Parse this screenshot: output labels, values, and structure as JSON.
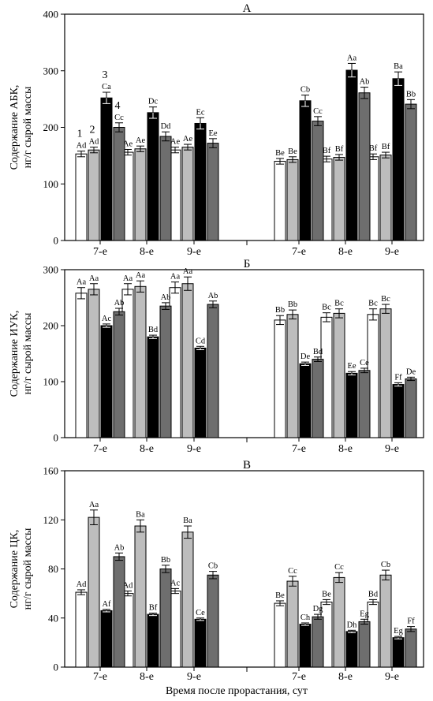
{
  "x_title": "Время после прорастания, сут",
  "colors": {
    "series1": "#ffffff",
    "series2": "#bdbdbd",
    "series3": "#000000",
    "series4": "#6e6e6e",
    "axis": "#000000"
  },
  "chart_data": [
    {
      "type": "bar",
      "title": "А",
      "ylabel_lines": [
        "Содержание АБК,",
        "нг/г сырой массы"
      ],
      "ylim": [
        0,
        400
      ],
      "yticks": [
        0,
        100,
        200,
        300,
        400
      ],
      "categories": [
        "7-е",
        "8-е",
        "9-е",
        "7-е",
        "8-е",
        "9-е"
      ],
      "series_numbers": [
        "1",
        "2",
        "3",
        "4"
      ],
      "series": [
        {
          "values": [
            153,
            156,
            160,
            140,
            144,
            148
          ],
          "errors": [
            5,
            5,
            5,
            5,
            5,
            5
          ],
          "labels": [
            "Ad",
            "Ae",
            "Ae",
            "Be",
            "Bf",
            "Bf"
          ]
        },
        {
          "values": [
            160,
            162,
            165,
            143,
            147,
            151
          ],
          "errors": [
            5,
            5,
            5,
            5,
            5,
            5
          ],
          "labels": [
            "Ad",
            "Ae",
            "Ae",
            "Be",
            "Bf",
            "Bf"
          ]
        },
        {
          "values": [
            252,
            226,
            207,
            247,
            301,
            286
          ],
          "errors": [
            10,
            10,
            10,
            10,
            12,
            12
          ],
          "labels": [
            "Ca",
            "Dc",
            "Ec",
            "Cb",
            "Aa",
            "Ba"
          ]
        },
        {
          "values": [
            200,
            184,
            172,
            211,
            261,
            241
          ],
          "errors": [
            8,
            8,
            8,
            8,
            10,
            8
          ],
          "labels": [
            "Cc",
            "Dd",
            "Ee",
            "Cc",
            "Ab",
            "Bb"
          ]
        }
      ]
    },
    {
      "type": "bar",
      "title": "Б",
      "ylabel_lines": [
        "Содержание ИУК,",
        "нг/г сырой массы"
      ],
      "ylim": [
        0,
        300
      ],
      "yticks": [
        0,
        100,
        200,
        300
      ],
      "categories": [
        "7-е",
        "8-е",
        "9-е",
        "7-е",
        "8-е",
        "9-е"
      ],
      "series": [
        {
          "values": [
            258,
            265,
            268,
            210,
            215,
            220
          ],
          "errors": [
            10,
            10,
            10,
            8,
            8,
            10
          ],
          "labels": [
            "Aa",
            "Aa",
            "Aa",
            "Bb",
            "Bc",
            "Bc"
          ]
        },
        {
          "values": [
            265,
            270,
            275,
            220,
            222,
            230
          ],
          "errors": [
            10,
            10,
            12,
            8,
            8,
            8
          ],
          "labels": [
            "Aa",
            "Aa",
            "Aa",
            "Bb",
            "Bc",
            "Bc"
          ]
        },
        {
          "values": [
            200,
            180,
            160,
            132,
            115,
            95
          ],
          "errors": [
            3,
            3,
            3,
            3,
            3,
            3
          ],
          "labels": [
            "Ac",
            "Bd",
            "Cd",
            "De",
            "Ee",
            "Ff"
          ]
        },
        {
          "values": [
            225,
            235,
            238,
            140,
            120,
            105
          ],
          "errors": [
            6,
            6,
            6,
            4,
            4,
            3
          ],
          "labels": [
            "Ab",
            "Ab",
            "Ab",
            "Bd",
            "Ce",
            "De"
          ]
        }
      ]
    },
    {
      "type": "bar",
      "title": "В",
      "ylabel_lines": [
        "Содержание ЦК,",
        "нг/г сырой массы"
      ],
      "ylim": [
        0,
        160
      ],
      "yticks": [
        0,
        40,
        80,
        120,
        160
      ],
      "categories": [
        "7-е",
        "8-е",
        "9-е",
        "7-е",
        "8-е",
        "9-е"
      ],
      "series": [
        {
          "values": [
            61,
            60,
            62,
            52,
            53,
            53
          ],
          "errors": [
            2,
            2,
            2,
            2,
            2,
            2
          ],
          "labels": [
            "Ad",
            "Ad",
            "Ac",
            "Be",
            "Be",
            "Bd"
          ]
        },
        {
          "values": [
            122,
            115,
            110,
            70,
            73,
            75
          ],
          "errors": [
            6,
            5,
            5,
            4,
            4,
            4
          ],
          "labels": [
            "Aa",
            "Ba",
            "Ba",
            "Cc",
            "Cc",
            "Cb"
          ]
        },
        {
          "values": [
            46,
            43,
            39,
            35,
            29,
            24
          ],
          "errors": [
            1,
            1,
            1,
            1,
            1,
            1
          ],
          "labels": [
            "Af",
            "Bf",
            "Ce",
            "Ch",
            "Dh",
            "Eg"
          ]
        },
        {
          "values": [
            90,
            80,
            75,
            41,
            37,
            31
          ],
          "errors": [
            3,
            3,
            3,
            2,
            2,
            2
          ],
          "labels": [
            "Ab",
            "Bb",
            "Cb",
            "Dg",
            "Eg",
            "Ff"
          ]
        }
      ]
    }
  ]
}
